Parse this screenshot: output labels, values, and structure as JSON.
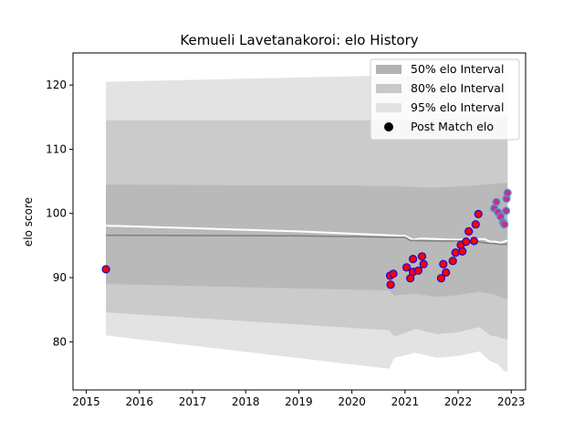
{
  "chart_data": {
    "type": "line",
    "title": "Kemueli Lavetanakoroi: elo History",
    "xlabel": "",
    "ylabel": "elo score",
    "xlim": [
      2014.75,
      2023.27
    ],
    "ylim": [
      72.5,
      125
    ],
    "x_ticks": [
      2015,
      2016,
      2017,
      2018,
      2019,
      2020,
      2021,
      2022,
      2023
    ],
    "y_ticks": [
      80,
      90,
      100,
      110,
      120
    ],
    "grid": false,
    "legend_position": "top-right",
    "legend": [
      {
        "label": "50% elo Interval",
        "kind": "patch",
        "color": "#b3b3b3"
      },
      {
        "label": "80% elo Interval",
        "kind": "patch",
        "color": "#c9c9c9"
      },
      {
        "label": "95% elo Interval",
        "kind": "patch",
        "color": "#e2e2e2"
      },
      {
        "label": "Post Match elo",
        "kind": "marker",
        "color": "#000000"
      }
    ],
    "bands": [
      {
        "name": "95% elo Interval",
        "color": "#e3e3e3",
        "upper": [
          [
            2015.37,
            120.5
          ],
          [
            2020.7,
            121.5
          ],
          [
            2021.5,
            121.5
          ],
          [
            2022.0,
            121.6
          ],
          [
            2022.5,
            121.7
          ],
          [
            2022.93,
            121.8
          ]
        ],
        "lower": [
          [
            2015.37,
            81.0
          ],
          [
            2020.7,
            75.8
          ],
          [
            2020.8,
            77.5
          ],
          [
            2021.2,
            78.3
          ],
          [
            2021.6,
            77.5
          ],
          [
            2022.0,
            77.8
          ],
          [
            2022.4,
            78.5
          ],
          [
            2022.6,
            77.0
          ],
          [
            2022.75,
            76.5
          ],
          [
            2022.85,
            75.5
          ],
          [
            2022.93,
            75.3
          ]
        ]
      },
      {
        "name": "80% elo Interval",
        "color": "#cbcbcb",
        "upper": [
          [
            2015.37,
            114.5
          ],
          [
            2020.7,
            114.5
          ],
          [
            2021.5,
            114.7
          ],
          [
            2022.0,
            114.8
          ],
          [
            2022.5,
            115.0
          ],
          [
            2022.93,
            115.2
          ]
        ],
        "lower": [
          [
            2015.37,
            84.6
          ],
          [
            2020.7,
            81.8
          ],
          [
            2020.8,
            80.8
          ],
          [
            2021.2,
            82.0
          ],
          [
            2021.6,
            81.2
          ],
          [
            2022.0,
            81.5
          ],
          [
            2022.4,
            82.3
          ],
          [
            2022.6,
            81.0
          ],
          [
            2022.75,
            80.8
          ],
          [
            2022.85,
            80.5
          ],
          [
            2022.93,
            80.3
          ]
        ]
      },
      {
        "name": "50% elo Interval",
        "color": "#b9b9b9",
        "upper": [
          [
            2015.37,
            104.5
          ],
          [
            2020.7,
            104.3
          ],
          [
            2021.5,
            104.0
          ],
          [
            2022.0,
            104.2
          ],
          [
            2022.5,
            104.5
          ],
          [
            2022.93,
            104.8
          ]
        ],
        "lower": [
          [
            2015.37,
            89.0
          ],
          [
            2020.7,
            88.0
          ],
          [
            2020.8,
            87.2
          ],
          [
            2021.2,
            87.5
          ],
          [
            2021.6,
            87.0
          ],
          [
            2022.0,
            87.3
          ],
          [
            2022.4,
            87.8
          ],
          [
            2022.6,
            87.5
          ],
          [
            2022.75,
            87.2
          ],
          [
            2022.85,
            86.8
          ],
          [
            2022.93,
            86.6
          ]
        ]
      }
    ],
    "lines": [
      {
        "name": "mean",
        "color": "#ffffff",
        "width": 2,
        "points": [
          [
            2015.37,
            98.1
          ],
          [
            2019.0,
            97.2
          ],
          [
            2020.7,
            96.6
          ],
          [
            2021.0,
            96.5
          ],
          [
            2021.15,
            95.9
          ],
          [
            2021.3,
            96.1
          ],
          [
            2021.6,
            96.0
          ],
          [
            2022.0,
            95.9
          ],
          [
            2022.3,
            96.0
          ],
          [
            2022.5,
            96.0
          ],
          [
            2022.6,
            95.6
          ],
          [
            2022.7,
            95.6
          ],
          [
            2022.8,
            95.4
          ],
          [
            2022.93,
            95.8
          ]
        ]
      },
      {
        "name": "median",
        "color": "#7f7f7f",
        "width": 1.5,
        "points": [
          [
            2015.37,
            96.6
          ],
          [
            2019.0,
            96.5
          ],
          [
            2020.7,
            96.3
          ],
          [
            2021.0,
            96.3
          ],
          [
            2021.1,
            95.8
          ],
          [
            2021.5,
            95.7
          ],
          [
            2022.0,
            95.7
          ],
          [
            2022.3,
            95.7
          ],
          [
            2022.5,
            95.4
          ],
          [
            2022.7,
            95.3
          ],
          [
            2022.8,
            95.2
          ],
          [
            2022.93,
            95.2
          ]
        ]
      },
      {
        "name": "recent",
        "color": "#4fa3c8",
        "width": 2,
        "points": [
          [
            2022.68,
            100.8
          ],
          [
            2022.75,
            100.2
          ],
          [
            2022.8,
            99.5
          ],
          [
            2022.85,
            98.6
          ],
          [
            2022.9,
            98.3
          ]
        ]
      }
    ],
    "points": [
      {
        "x": 2015.37,
        "y": 91.3,
        "fill": "#ff0000",
        "edge": "#2200cc"
      },
      {
        "x": 2020.72,
        "y": 90.3,
        "fill": "#ff0000",
        "edge": "#2200cc"
      },
      {
        "x": 2020.73,
        "y": 88.9,
        "fill": "#ff0000",
        "edge": "#2200cc"
      },
      {
        "x": 2020.78,
        "y": 90.6,
        "fill": "#ff0000",
        "edge": "#2200cc"
      },
      {
        "x": 2021.03,
        "y": 91.6,
        "fill": "#ff0000",
        "edge": "#2200cc"
      },
      {
        "x": 2021.1,
        "y": 89.9,
        "fill": "#ff0000",
        "edge": "#2200cc"
      },
      {
        "x": 2021.15,
        "y": 90.9,
        "fill": "#ff0000",
        "edge": "#2200cc"
      },
      {
        "x": 2021.15,
        "y": 92.9,
        "fill": "#ff0000",
        "edge": "#2200cc"
      },
      {
        "x": 2021.25,
        "y": 91.1,
        "fill": "#ff0000",
        "edge": "#2200cc"
      },
      {
        "x": 2021.32,
        "y": 93.3,
        "fill": "#ff0000",
        "edge": "#2200cc"
      },
      {
        "x": 2021.35,
        "y": 92.1,
        "fill": "#ff0000",
        "edge": "#2200cc"
      },
      {
        "x": 2021.68,
        "y": 89.9,
        "fill": "#ff0000",
        "edge": "#2200cc"
      },
      {
        "x": 2021.72,
        "y": 92.1,
        "fill": "#ff0000",
        "edge": "#2200cc"
      },
      {
        "x": 2021.77,
        "y": 90.8,
        "fill": "#ff0000",
        "edge": "#2200cc"
      },
      {
        "x": 2021.9,
        "y": 92.6,
        "fill": "#ff0000",
        "edge": "#2200cc"
      },
      {
        "x": 2021.95,
        "y": 93.9,
        "fill": "#ff0000",
        "edge": "#2200cc"
      },
      {
        "x": 2022.05,
        "y": 95.1,
        "fill": "#ff0000",
        "edge": "#2200cc"
      },
      {
        "x": 2022.08,
        "y": 94.1,
        "fill": "#ff0000",
        "edge": "#2200cc"
      },
      {
        "x": 2022.15,
        "y": 95.6,
        "fill": "#ff0000",
        "edge": "#2200cc"
      },
      {
        "x": 2022.2,
        "y": 97.2,
        "fill": "#ff0000",
        "edge": "#2200cc"
      },
      {
        "x": 2022.3,
        "y": 95.7,
        "fill": "#ff0000",
        "edge": "#2200cc"
      },
      {
        "x": 2022.33,
        "y": 98.3,
        "fill": "#ff0000",
        "edge": "#2200cc"
      },
      {
        "x": 2022.38,
        "y": 99.9,
        "fill": "#ff0000",
        "edge": "#2200cc"
      },
      {
        "x": 2022.68,
        "y": 100.8,
        "fill": "#bb3399",
        "edge": "#4fa3c8"
      },
      {
        "x": 2022.72,
        "y": 101.8,
        "fill": "#bb3399",
        "edge": "#4fa3c8"
      },
      {
        "x": 2022.75,
        "y": 100.2,
        "fill": "#bb3399",
        "edge": "#4fa3c8"
      },
      {
        "x": 2022.8,
        "y": 99.5,
        "fill": "#bb3399",
        "edge": "#4fa3c8"
      },
      {
        "x": 2022.85,
        "y": 98.6,
        "fill": "#bb3399",
        "edge": "#4fa3c8"
      },
      {
        "x": 2022.87,
        "y": 98.3,
        "fill": "#bb3399",
        "edge": "#4fa3c8"
      },
      {
        "x": 2022.9,
        "y": 100.4,
        "fill": "#bb3399",
        "edge": "#4fa3c8"
      },
      {
        "x": 2022.91,
        "y": 102.3,
        "fill": "#bb3399",
        "edge": "#4fa3c8"
      },
      {
        "x": 2022.93,
        "y": 103.2,
        "fill": "#bb3399",
        "edge": "#4fa3c8"
      }
    ]
  }
}
